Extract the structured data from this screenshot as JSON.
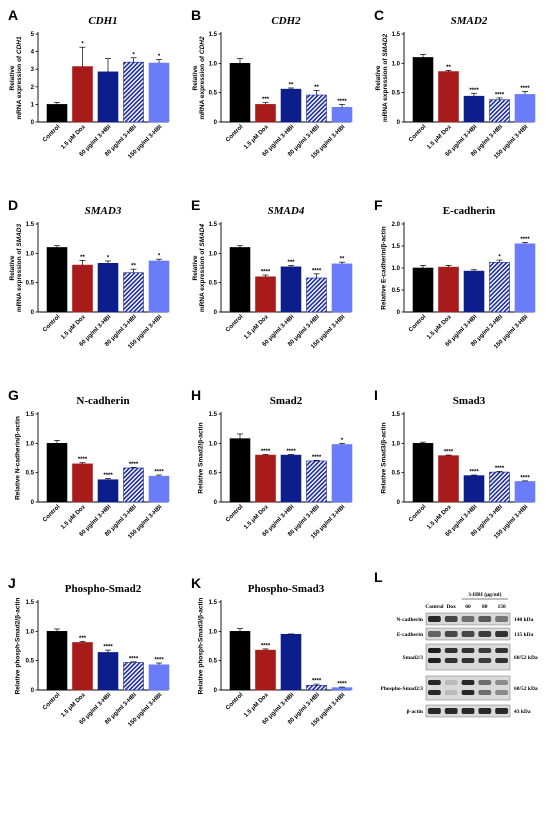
{
  "chart_data": [
    {
      "id": "A",
      "type": "bar",
      "title": "CDH1",
      "title_style": "italic",
      "ylabel_parts": [
        {
          "t": "Relative"
        },
        {
          "t": "mRNA expression of "
        },
        {
          "t": "CDH1",
          "i": true
        }
      ],
      "ylim": [
        0,
        5
      ],
      "yticks": [
        0,
        1,
        2,
        3,
        4,
        5
      ],
      "categories": [
        "Control",
        "1.5 μM Dox",
        "60 μg/ml 3-HBI",
        "80 μg/ml 3-HBI",
        "150 μg/ml 3-HBI"
      ],
      "values": [
        1.0,
        3.15,
        2.85,
        3.4,
        3.35
      ],
      "errors": [
        0.1,
        1.1,
        0.75,
        0.25,
        0.2
      ],
      "significance": [
        "",
        "*",
        "",
        "*",
        "*"
      ]
    },
    {
      "id": "B",
      "type": "bar",
      "title": "CDH2",
      "title_style": "italic",
      "ylabel_parts": [
        {
          "t": "Relative"
        },
        {
          "t": "mRNA expression of "
        },
        {
          "t": "CDH2",
          "i": true
        }
      ],
      "ylim": [
        0,
        1.5
      ],
      "yticks": [
        0,
        0.5,
        1.0,
        1.5
      ],
      "categories": [
        "Control",
        "1.5 μM Dox",
        "60 μg/ml 3-HBI",
        "80 μg/ml 3-HBI",
        "150 μg/ml 3-HBI"
      ],
      "values": [
        1.0,
        0.3,
        0.56,
        0.46,
        0.25
      ],
      "errors": [
        0.08,
        0.03,
        0.02,
        0.08,
        0.05
      ],
      "significance": [
        "",
        "***",
        "**",
        "**",
        "****"
      ]
    },
    {
      "id": "C",
      "type": "bar",
      "title": "SMAD2",
      "title_style": "italic",
      "ylabel_parts": [
        {
          "t": "Relative"
        },
        {
          "t": "mRNA expression of "
        },
        {
          "t": "SMAD2",
          "i": true
        }
      ],
      "ylim": [
        0,
        1.5
      ],
      "yticks": [
        0,
        0.5,
        1.0,
        1.5
      ],
      "categories": [
        "Control",
        "1.5 μM Dox",
        "60 μg/ml 3-HBI",
        "80 μg/ml 3-HBI",
        "150 μg/ml 3-HBI"
      ],
      "values": [
        1.1,
        0.86,
        0.44,
        0.38,
        0.47
      ],
      "errors": [
        0.05,
        0.02,
        0.05,
        0.03,
        0.05
      ],
      "significance": [
        "",
        "**",
        "****",
        "****",
        "****"
      ]
    },
    {
      "id": "D",
      "type": "bar",
      "title": "SMAD3",
      "title_style": "italic",
      "ylabel_parts": [
        {
          "t": "Relative"
        },
        {
          "t": "mRNA expression of "
        },
        {
          "t": "SMAD3",
          "i": true
        }
      ],
      "ylim": [
        0,
        1.5
      ],
      "yticks": [
        0,
        0.5,
        1.0,
        1.5
      ],
      "categories": [
        "Control",
        "1.5 μM Dox",
        "60 μg/ml 3-HBI",
        "80 μg/ml 3-HBI",
        "150 μg/ml 3-HBI"
      ],
      "values": [
        1.1,
        0.8,
        0.83,
        0.67,
        0.87
      ],
      "errors": [
        0.03,
        0.08,
        0.04,
        0.06,
        0.03
      ],
      "significance": [
        "",
        "**",
        "*",
        "**",
        "*"
      ]
    },
    {
      "id": "E",
      "type": "bar",
      "title": "SMAD4",
      "title_style": "italic",
      "ylabel_parts": [
        {
          "t": "Relative"
        },
        {
          "t": "mRNA expression of "
        },
        {
          "t": "SMAD4",
          "i": true
        }
      ],
      "ylim": [
        0,
        1.5
      ],
      "yticks": [
        0,
        0.5,
        1.0,
        1.5
      ],
      "categories": [
        "Control",
        "1.5 μM Dox",
        "60 μg/ml 3-HBI",
        "80 μg/ml 3-HBI",
        "150 μg/ml 3-HBI"
      ],
      "values": [
        1.1,
        0.6,
        0.77,
        0.58,
        0.82
      ],
      "errors": [
        0.03,
        0.03,
        0.02,
        0.07,
        0.03
      ],
      "significance": [
        "",
        "****",
        "***",
        "****",
        "**"
      ]
    },
    {
      "id": "F",
      "type": "bar",
      "title": "E-cadherin",
      "title_style": "plain",
      "ylabel_parts": [
        {
          "t": "Relative E-cadherin/β-actin"
        }
      ],
      "ylim": [
        0,
        2.0
      ],
      "yticks": [
        0,
        0.5,
        1.0,
        1.5,
        2.0
      ],
      "categories": [
        "Control",
        "1.5 μM Dox",
        "60 μg/ml 3-HBI",
        "80 μg/ml 3-HBI",
        "150 μg/ml 3-HBI"
      ],
      "values": [
        1.0,
        1.02,
        0.93,
        1.13,
        1.55
      ],
      "errors": [
        0.06,
        0.04,
        0.03,
        0.05,
        0.03
      ],
      "significance": [
        "",
        "",
        "",
        "*",
        "****"
      ]
    },
    {
      "id": "G",
      "type": "bar",
      "title": "N-cadherin",
      "title_style": "plain",
      "ylabel_parts": [
        {
          "t": "Relative N-cadherin/β-actin"
        }
      ],
      "ylim": [
        0,
        1.5
      ],
      "yticks": [
        0,
        0.5,
        1.0,
        1.5
      ],
      "categories": [
        "Control",
        "1.5 μM Dox",
        "60 μg/ml 3-HBI",
        "80 μg/ml 3-HBI",
        "150 μg/ml 3-HBI"
      ],
      "values": [
        1.0,
        0.65,
        0.38,
        0.58,
        0.44
      ],
      "errors": [
        0.05,
        0.02,
        0.02,
        0.01,
        0.02
      ],
      "significance": [
        "",
        "****",
        "****",
        "****",
        "****"
      ]
    },
    {
      "id": "H",
      "type": "bar",
      "title": "Smad2",
      "title_style": "plain",
      "ylabel_parts": [
        {
          "t": "Relative Smad2/β-actin"
        }
      ],
      "ylim": [
        0,
        1.5
      ],
      "yticks": [
        0,
        0.5,
        1.0,
        1.5
      ],
      "categories": [
        "Control",
        "1.5 μM Dox",
        "60 μg/ml 3-HBI",
        "80 μg/ml 3-HBI",
        "150 μg/ml 3-HBI"
      ],
      "values": [
        1.08,
        0.8,
        0.8,
        0.7,
        0.98
      ],
      "errors": [
        0.08,
        0.01,
        0.01,
        0.01,
        0.02
      ],
      "significance": [
        "",
        "****",
        "****",
        "****",
        "*"
      ]
    },
    {
      "id": "I",
      "type": "bar",
      "title": "Smad3",
      "title_style": "plain",
      "ylabel_parts": [
        {
          "t": "Relative Smad3/β-actin"
        }
      ],
      "ylim": [
        0,
        1.5
      ],
      "yticks": [
        0,
        0.5,
        1.0,
        1.5
      ],
      "categories": [
        "Control",
        "1.5 μM Dox",
        "60 μg/ml 3-HBI",
        "80 μg/ml 3-HBI",
        "150 μg/ml 3-HBI"
      ],
      "values": [
        1.0,
        0.79,
        0.45,
        0.51,
        0.35
      ],
      "errors": [
        0.02,
        0.01,
        0.01,
        0.01,
        0.01
      ],
      "significance": [
        "",
        "****",
        "****",
        "****",
        "****"
      ]
    },
    {
      "id": "J",
      "type": "bar",
      "title": "Phospho-Smad2",
      "title_style": "plain",
      "ylabel_parts": [
        {
          "t": "Relative phosph-Smad2/β-actin"
        }
      ],
      "ylim": [
        0,
        1.5
      ],
      "yticks": [
        0,
        0.5,
        1.0,
        1.5
      ],
      "categories": [
        "Control",
        "1.5 μM Dox",
        "60 μg/ml 3-HBI",
        "80 μg/ml 3-HBI",
        "150 μg/ml 3-HBI"
      ],
      "values": [
        1.0,
        0.81,
        0.64,
        0.47,
        0.43
      ],
      "errors": [
        0.04,
        0.02,
        0.04,
        0.01,
        0.03
      ],
      "significance": [
        "",
        "***",
        "****",
        "****",
        "****"
      ]
    },
    {
      "id": "K",
      "type": "bar",
      "title": "Phospho-Smad3",
      "title_style": "plain",
      "ylabel_parts": [
        {
          "t": "Relative phosph-Smad3/β-actin"
        }
      ],
      "ylim": [
        0,
        1.5
      ],
      "yticks": [
        0,
        0.5,
        1.0,
        1.5
      ],
      "categories": [
        "Control",
        "1.5 μM Dox",
        "60 μg/ml 3-HBI",
        "80 μg/ml 3-HBI",
        "150 μg/ml 3-HBI"
      ],
      "values": [
        1.0,
        0.68,
        0.95,
        0.08,
        0.04
      ],
      "errors": [
        0.05,
        0.02,
        0.005,
        0.02,
        0.01
      ],
      "significance": [
        "",
        "****",
        "",
        "****",
        "****"
      ]
    }
  ],
  "series_colors": [
    "#000000",
    "#a81b1b",
    "#0c1d8c",
    "#1a2a9c",
    "#6a7cf8"
  ],
  "series_pattern": [
    "solid",
    "solid",
    "solid",
    "hatched",
    "solid"
  ],
  "blot": {
    "letter": "L",
    "group_label": "3-HBI (μg/ml)",
    "lanes": [
      "Control",
      "Dox",
      "60",
      "80",
      "150"
    ],
    "proteins": [
      {
        "name": "N-cadherin",
        "kda": "140 kDa"
      },
      {
        "name": "E-cadherin",
        "kda": "135 kDa"
      },
      {
        "name": "Smad2/3",
        "kda": "60/52 kDa"
      },
      {
        "name": "Phospho-Smad2/3",
        "kda": "60/52 kDa"
      },
      {
        "name": "β-actin",
        "kda": "43 kDa"
      }
    ]
  }
}
